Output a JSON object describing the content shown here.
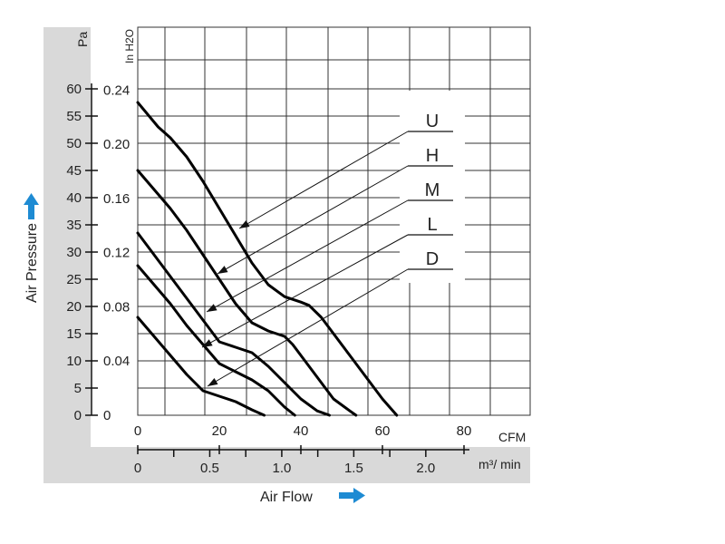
{
  "chart_data": {
    "type": "line",
    "xlabel": "Air Flow",
    "ylabel": "Air Pressure",
    "x_unit_primary": "CFM",
    "x_unit_secondary": "m³/ min",
    "y_unit_primary": "Pa",
    "y_unit_secondary": "In H2O",
    "xlim": [
      0,
      80
    ],
    "ylim": [
      0,
      60
    ],
    "x_ticks_cfm": [
      "0",
      "20",
      "40",
      "60",
      "80"
    ],
    "x_ticks_m3min": [
      "0",
      "0.5",
      "1.0",
      "1.5",
      "2.0"
    ],
    "y_ticks_pa": [
      "0",
      "5",
      "10",
      "15",
      "20",
      "25",
      "30",
      "35",
      "40",
      "45",
      "50",
      "55",
      "60"
    ],
    "y_ticks_inh2o": [
      "0",
      "0.04",
      "0.08",
      "0.12",
      "0.16",
      "0.20",
      "0.24"
    ],
    "grid": true,
    "legend_position": "top-right",
    "curve_color": "#000000",
    "panel_color": "#d9d9d9",
    "arrow_color": "#1e8bd3",
    "series": [
      {
        "name": "U",
        "x": [
          0,
          5,
          8,
          12,
          16,
          20,
          24,
          28,
          32,
          36,
          40,
          42,
          45,
          48,
          52,
          56,
          60,
          63.5
        ],
        "y": [
          57.5,
          53,
          51,
          47.5,
          43,
          38,
          33,
          28,
          24,
          21.8,
          20.8,
          20.2,
          18,
          15,
          11,
          7,
          3,
          0
        ]
      },
      {
        "name": "H",
        "x": [
          0,
          4,
          8,
          12,
          16,
          20,
          24,
          28,
          32,
          36,
          38,
          40,
          44,
          48,
          52,
          53.5
        ],
        "y": [
          45,
          41.5,
          38,
          34,
          29.5,
          25,
          20.5,
          17,
          15.5,
          14.5,
          13,
          11,
          7,
          3,
          0.8,
          0
        ]
      },
      {
        "name": "M",
        "x": [
          0,
          4,
          8,
          12,
          16,
          20,
          24,
          28,
          32,
          36,
          40,
          44,
          47
        ],
        "y": [
          33.5,
          29.5,
          25.5,
          21.5,
          17.5,
          13.5,
          12.5,
          11.5,
          9,
          6,
          3,
          0.8,
          0
        ]
      },
      {
        "name": "L",
        "x": [
          0,
          4,
          8,
          12,
          16,
          20,
          24,
          28,
          32,
          36,
          38.5
        ],
        "y": [
          27.5,
          24,
          20.5,
          16.5,
          13,
          9.5,
          8,
          6.5,
          4.5,
          1.5,
          0
        ]
      },
      {
        "name": "D",
        "x": [
          0,
          4,
          8,
          12,
          16,
          18,
          20,
          24,
          28,
          31
        ],
        "y": [
          18,
          14.5,
          11,
          7.5,
          4.5,
          4,
          3.5,
          2.5,
          1,
          0
        ]
      }
    ]
  }
}
